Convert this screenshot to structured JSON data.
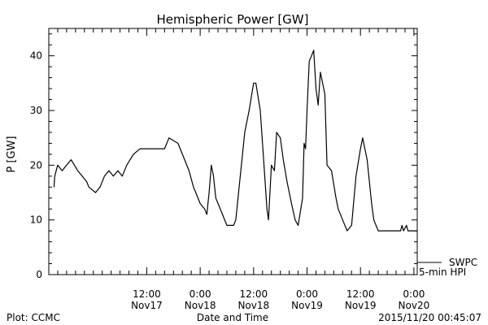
{
  "chart_data": {
    "type": "line",
    "title": "Hemispheric Power [GW]",
    "xlabel": "Date and Time",
    "ylabel": "P [GW]",
    "ylim": [
      0,
      45
    ],
    "yticks": [
      0,
      10,
      20,
      30,
      40
    ],
    "xlim": [
      "2015-11-16 14:00",
      "2015-11-20 00:45"
    ],
    "xticks": [
      {
        "time": "2015-11-17 12:00",
        "label_top": "12:00",
        "label_bottom": "Nov17"
      },
      {
        "time": "2015-11-18 00:00",
        "label_top": "0:00",
        "label_bottom": "Nov18"
      },
      {
        "time": "2015-11-18 12:00",
        "label_top": "12:00",
        "label_bottom": "Nov18"
      },
      {
        "time": "2015-11-19 00:00",
        "label_top": "0:00",
        "label_bottom": "Nov19"
      },
      {
        "time": "2015-11-19 12:00",
        "label_top": "12:00",
        "label_bottom": "Nov19"
      },
      {
        "time": "2015-11-20 00:00",
        "label_top": "0:00",
        "label_bottom": "Nov20"
      }
    ],
    "grid": false,
    "series": [
      {
        "name": "SWPC 5-min HPI",
        "color": "#000000",
        "points": [
          [
            "2015-11-16 15:10",
            16
          ],
          [
            "2015-11-16 15:20",
            18
          ],
          [
            "2015-11-16 16:00",
            20
          ],
          [
            "2015-11-16 17:00",
            19
          ],
          [
            "2015-11-16 18:00",
            20
          ],
          [
            "2015-11-16 19:00",
            21
          ],
          [
            "2015-11-16 20:30",
            19
          ],
          [
            "2015-11-16 21:30",
            18
          ],
          [
            "2015-11-16 22:30",
            17
          ],
          [
            "2015-11-16 23:00",
            16
          ],
          [
            "2015-11-17 00:30",
            15
          ],
          [
            "2015-11-17 01:30",
            16
          ],
          [
            "2015-11-17 02:30",
            18
          ],
          [
            "2015-11-17 03:30",
            19
          ],
          [
            "2015-11-17 04:30",
            18
          ],
          [
            "2015-11-17 05:30",
            19
          ],
          [
            "2015-11-17 06:30",
            18
          ],
          [
            "2015-11-17 07:30",
            20
          ],
          [
            "2015-11-17 09:00",
            22
          ],
          [
            "2015-11-17 10:30",
            23
          ],
          [
            "2015-11-17 14:00",
            23
          ],
          [
            "2015-11-17 16:00",
            23
          ],
          [
            "2015-11-17 17:00",
            25
          ],
          [
            "2015-11-17 19:00",
            24
          ],
          [
            "2015-11-17 20:30",
            21
          ],
          [
            "2015-11-17 21:30",
            19
          ],
          [
            "2015-11-17 22:30",
            16
          ],
          [
            "2015-11-17 23:00",
            15
          ],
          [
            "2015-11-18 00:00",
            13
          ],
          [
            "2015-11-18 01:00",
            12
          ],
          [
            "2015-11-18 01:30",
            11
          ],
          [
            "2015-11-18 02:00",
            15
          ],
          [
            "2015-11-18 02:30",
            20
          ],
          [
            "2015-11-18 03:00",
            18
          ],
          [
            "2015-11-18 03:30",
            14
          ],
          [
            "2015-11-18 04:30",
            12
          ],
          [
            "2015-11-18 05:00",
            11
          ],
          [
            "2015-11-18 06:00",
            9
          ],
          [
            "2015-11-18 07:30",
            9
          ],
          [
            "2015-11-18 08:00",
            10
          ],
          [
            "2015-11-18 09:00",
            18
          ],
          [
            "2015-11-18 10:00",
            26
          ],
          [
            "2015-11-18 11:00",
            30
          ],
          [
            "2015-11-18 12:00",
            35
          ],
          [
            "2015-11-18 12:30",
            35
          ],
          [
            "2015-11-18 13:30",
            30
          ],
          [
            "2015-11-18 14:30",
            18
          ],
          [
            "2015-11-18 15:00",
            12
          ],
          [
            "2015-11-18 15:20",
            10
          ],
          [
            "2015-11-18 16:00",
            20
          ],
          [
            "2015-11-18 16:40",
            19
          ],
          [
            "2015-11-18 17:10",
            26
          ],
          [
            "2015-11-18 18:00",
            25
          ],
          [
            "2015-11-18 18:40",
            21
          ],
          [
            "2015-11-18 19:30",
            17
          ],
          [
            "2015-11-18 20:30",
            13
          ],
          [
            "2015-11-18 21:20",
            10
          ],
          [
            "2015-11-18 22:00",
            9
          ],
          [
            "2015-11-18 23:00",
            14
          ],
          [
            "2015-11-18 23:20",
            24
          ],
          [
            "2015-11-18 23:40",
            23
          ],
          [
            "2015-11-19 00:00",
            30
          ],
          [
            "2015-11-19 00:30",
            39
          ],
          [
            "2015-11-19 01:00",
            40
          ],
          [
            "2015-11-19 01:30",
            41
          ],
          [
            "2015-11-19 02:00",
            34
          ],
          [
            "2015-11-19 02:30",
            31
          ],
          [
            "2015-11-19 03:00",
            37
          ],
          [
            "2015-11-19 04:00",
            33
          ],
          [
            "2015-11-19 04:30",
            20
          ],
          [
            "2015-11-19 05:30",
            19
          ],
          [
            "2015-11-19 06:30",
            14
          ],
          [
            "2015-11-19 07:00",
            12
          ],
          [
            "2015-11-19 08:00",
            10
          ],
          [
            "2015-11-19 09:00",
            8
          ],
          [
            "2015-11-19 10:00",
            9
          ],
          [
            "2015-11-19 11:00",
            18
          ],
          [
            "2015-11-19 12:00",
            23
          ],
          [
            "2015-11-19 12:30",
            25
          ],
          [
            "2015-11-19 13:30",
            21
          ],
          [
            "2015-11-19 14:30",
            13
          ],
          [
            "2015-11-19 15:00",
            10
          ],
          [
            "2015-11-19 16:00",
            8
          ],
          [
            "2015-11-19 21:00",
            8
          ],
          [
            "2015-11-19 21:20",
            9
          ],
          [
            "2015-11-19 21:40",
            8
          ],
          [
            "2015-11-19 22:20",
            9
          ],
          [
            "2015-11-19 22:40",
            8
          ],
          [
            "2015-11-20 00:45",
            8
          ]
        ]
      }
    ]
  },
  "labels": {
    "title": "Hemispheric Power [GW]",
    "ylabel": "P [GW]",
    "xlabel": "Date and Time",
    "legend_line1": "SWPC",
    "legend_line2": "5-min HPI",
    "footer_left": "Plot: CCMC",
    "footer_right": "2015/11/20 00:45:07"
  }
}
